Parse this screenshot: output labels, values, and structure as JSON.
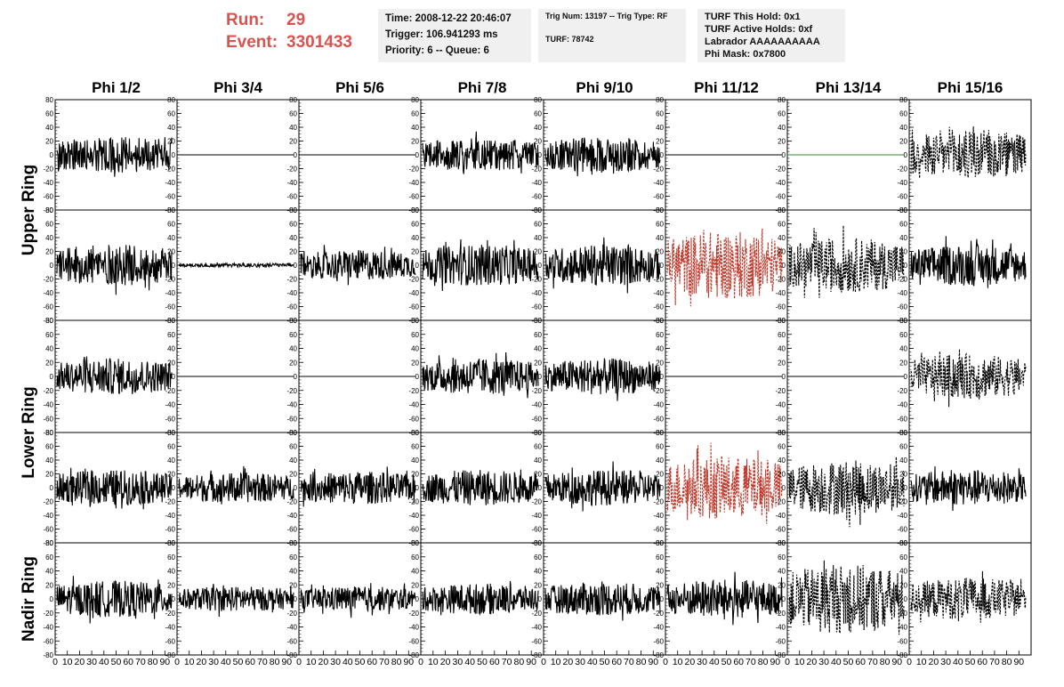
{
  "header": {
    "run_label": "Run:",
    "run_value": "29",
    "event_label": "Event:",
    "event_value": "3301433",
    "time": "Time: 2008-12-22 20:46:07",
    "trigger": "Trigger: 106.941293 ms",
    "priority": "Priority: 6 -- Queue: 6",
    "trig_num": "Trig Num: 13197 -- Trig Type: RF",
    "turf": "TURF: 78742",
    "turf_this_hold": "TURF This Hold: 0x1",
    "turf_active_holds": "TURF Active Holds: 0xf",
    "labrador": "Labrador AAAAAAAAAA",
    "phi_mask": "Phi Mask: 0x7800"
  },
  "colors": {
    "run_text": "#d9534f",
    "trace": "#000000",
    "trace_highlight": "#c0392b",
    "trace_flat_green": "#2e8b2e"
  },
  "chart_data": {
    "type": "line",
    "columns": [
      "Phi 1/2",
      "Phi 3/4",
      "Phi 5/6",
      "Phi 7/8",
      "Phi 9/10",
      "Phi 11/12",
      "Phi 13/14",
      "Phi 15/16"
    ],
    "group_labels": [
      "Upper Ring",
      "Lower Ring",
      "Nadir Ring"
    ],
    "ylim": [
      -80,
      80
    ],
    "xlim": [
      0,
      100
    ],
    "y_ticks": [
      80,
      60,
      40,
      20,
      0,
      -20,
      -40,
      -60,
      -80
    ],
    "x_ticks": [
      0,
      10,
      20,
      30,
      40,
      50,
      60,
      70,
      80,
      90
    ],
    "rows": [
      [
        {
          "amp": 26,
          "style": "solid",
          "color": "#000000"
        },
        {
          "amp": 0,
          "style": "flat",
          "color": "#000000"
        },
        {
          "amp": 0,
          "style": "flat",
          "color": "#000000"
        },
        {
          "amp": 24,
          "style": "solid",
          "color": "#000000"
        },
        {
          "amp": 26,
          "style": "solid",
          "color": "#000000"
        },
        {
          "amp": 0,
          "style": "flat",
          "color": "#000000"
        },
        {
          "amp": 0,
          "style": "flat",
          "color": "#2e8b2e"
        },
        {
          "amp": 38,
          "style": "dashed",
          "color": "#000000"
        }
      ],
      [
        {
          "amp": 30,
          "style": "solid",
          "color": "#000000"
        },
        {
          "amp": 3,
          "style": "solid",
          "color": "#000000"
        },
        {
          "amp": 22,
          "style": "solid",
          "color": "#000000"
        },
        {
          "amp": 30,
          "style": "solid",
          "color": "#000000"
        },
        {
          "amp": 30,
          "style": "solid",
          "color": "#000000"
        },
        {
          "amp": 50,
          "style": "dashed",
          "color": "#c0392b"
        },
        {
          "amp": 40,
          "style": "dashed",
          "color": "#000000"
        },
        {
          "amp": 30,
          "style": "solid",
          "color": "#000000"
        }
      ],
      [
        {
          "amp": 26,
          "style": "solid",
          "color": "#000000"
        },
        {
          "amp": 0,
          "style": "flat",
          "color": "#000000"
        },
        {
          "amp": 0,
          "style": "flat",
          "color": "#000000"
        },
        {
          "amp": 26,
          "style": "solid",
          "color": "#000000"
        },
        {
          "amp": 26,
          "style": "solid",
          "color": "#000000"
        },
        {
          "amp": 0,
          "style": "flat",
          "color": "#000000"
        },
        {
          "amp": 0,
          "style": "flat",
          "color": "#000000"
        },
        {
          "amp": 32,
          "style": "dashed",
          "color": "#000000"
        }
      ],
      [
        {
          "amp": 26,
          "style": "solid",
          "color": "#000000"
        },
        {
          "amp": 22,
          "style": "solid",
          "color": "#000000"
        },
        {
          "amp": 24,
          "style": "solid",
          "color": "#000000"
        },
        {
          "amp": 26,
          "style": "solid",
          "color": "#000000"
        },
        {
          "amp": 26,
          "style": "solid",
          "color": "#000000"
        },
        {
          "amp": 46,
          "style": "dashed",
          "color": "#c0392b"
        },
        {
          "amp": 40,
          "style": "dashed",
          "color": "#000000"
        },
        {
          "amp": 26,
          "style": "solid",
          "color": "#000000"
        }
      ],
      [
        {
          "amp": 26,
          "style": "solid",
          "color": "#000000"
        },
        {
          "amp": 18,
          "style": "solid",
          "color": "#000000"
        },
        {
          "amp": 18,
          "style": "solid",
          "color": "#000000"
        },
        {
          "amp": 22,
          "style": "solid",
          "color": "#000000"
        },
        {
          "amp": 24,
          "style": "solid",
          "color": "#000000"
        },
        {
          "amp": 28,
          "style": "solid",
          "color": "#000000"
        },
        {
          "amp": 50,
          "style": "dashed",
          "color": "#000000"
        },
        {
          "amp": 30,
          "style": "dashed",
          "color": "#000000"
        }
      ]
    ]
  }
}
